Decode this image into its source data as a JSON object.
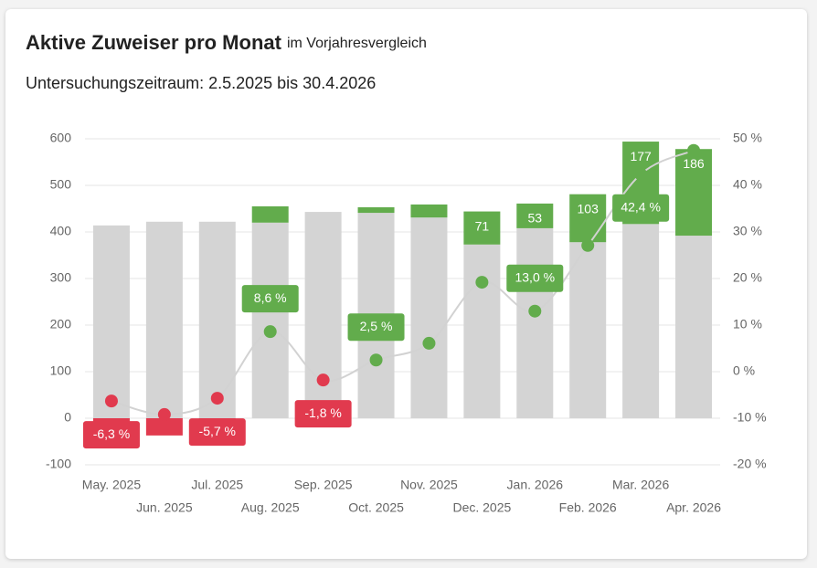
{
  "chart_data": {
    "type": "bar",
    "title": "Aktive Zuweiser pro Monat",
    "subtitle": "im Vorjahresvergleich",
    "period": "Untersuchungszeitraum: 2.5.2025 bis 30.4.2026",
    "categories": [
      "May. 2025",
      "Jun. 2025",
      "Jul. 2025",
      "Aug. 2025",
      "Sep. 2025",
      "Oct. 2025",
      "Nov. 2025",
      "Dec. 2025",
      "Jan. 2026",
      "Feb. 2026",
      "Mar. 2026",
      "Apr. 2026"
    ],
    "series": [
      {
        "type": "bar",
        "color": "#d4d4d4",
        "values": [
          414,
          422,
          422,
          420,
          443,
          441,
          431,
          373,
          408,
          378,
          417,
          392
        ]
      },
      {
        "type": "bar",
        "stacked": true,
        "colors": {
          "positive": "#62ac4c",
          "negative": "#e13a4e"
        },
        "values": [
          -26,
          -37,
          -24,
          35,
          -8,
          12,
          28,
          71,
          53,
          103,
          177,
          186
        ],
        "value_labels": [
          null,
          null,
          null,
          null,
          null,
          null,
          null,
          "71",
          "53",
          "103",
          "177",
          "186"
        ]
      },
      {
        "type": "line",
        "axis": "y2",
        "color": "#d2d2d2",
        "colors": {
          "positive": "#62ac4c",
          "negative": "#e13a4e"
        },
        "values": [
          -6.3,
          -9.2,
          -5.7,
          8.6,
          -1.8,
          2.5,
          6.1,
          19.2,
          13.0,
          27.1,
          42.4,
          47.5
        ],
        "value_labels": [
          "-6,3 %",
          null,
          "-5,7 %",
          "8,6 %",
          "-1,8 %",
          "2,5 %",
          null,
          null,
          "13,0 %",
          null,
          "42,4 %",
          null
        ]
      }
    ],
    "ylim": [
      -100,
      600
    ],
    "yticks": [
      -100,
      0,
      100,
      200,
      300,
      400,
      500,
      600
    ],
    "y2lim": [
      -20,
      50
    ],
    "y2ticks": [
      {
        "value": -20,
        "label": "-20 %"
      },
      {
        "value": -10,
        "label": "-10 %"
      },
      {
        "value": 0,
        "label": "0 %"
      },
      {
        "value": 10,
        "label": "10 %"
      },
      {
        "value": 20,
        "label": "20 %"
      },
      {
        "value": 30,
        "label": "30 %"
      },
      {
        "value": 40,
        "label": "40 %"
      },
      {
        "value": 50,
        "label": "50 %"
      }
    ],
    "grid": true
  }
}
